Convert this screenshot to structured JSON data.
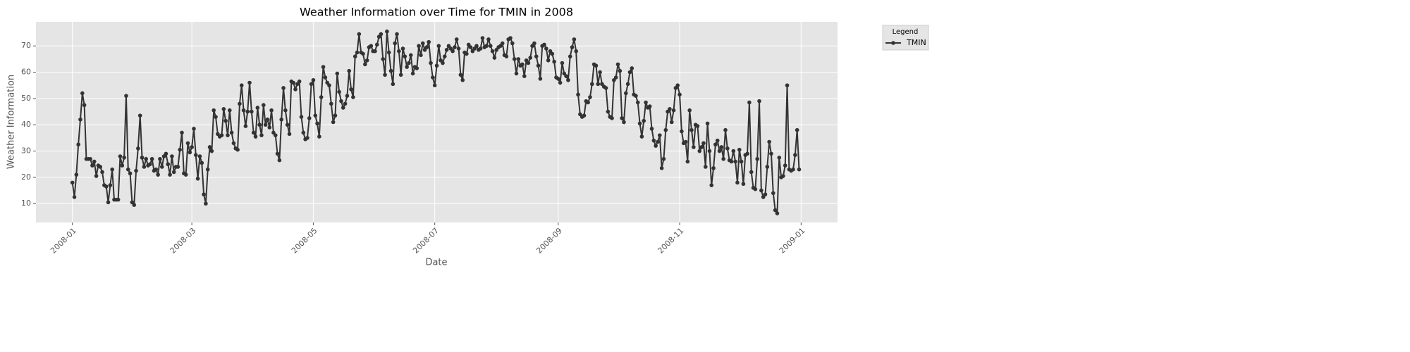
{
  "chart_data": {
    "type": "line",
    "title": "Weather Information over Time for TMIN in 2008",
    "xlabel": "Date",
    "ylabel": "Weather Information",
    "legend_title": "Legend",
    "legend_loc": "outside upper right",
    "grid": true,
    "x": [
      0,
      1,
      2,
      3,
      4,
      5,
      6,
      7,
      8,
      9,
      10,
      11,
      12,
      13,
      14,
      15,
      16,
      17,
      18,
      19,
      20,
      21,
      22,
      23,
      24,
      25,
      26,
      27,
      28,
      29,
      30,
      31,
      32,
      33,
      34,
      35,
      36,
      37,
      38,
      39,
      40,
      41,
      42,
      43,
      44,
      45,
      46,
      47,
      48,
      49,
      50,
      51,
      52,
      53,
      54,
      55,
      56,
      57,
      58,
      59,
      60,
      61,
      62,
      63,
      64,
      65,
      66,
      67,
      68,
      69,
      70,
      71,
      72,
      73,
      74,
      75,
      76,
      77,
      78,
      79,
      80,
      81,
      82,
      83,
      84,
      85,
      86,
      87,
      88,
      89,
      90,
      91,
      92,
      93,
      94,
      95,
      96,
      97,
      98,
      99,
      100,
      101,
      102,
      103,
      104,
      105,
      106,
      107,
      108,
      109,
      110,
      111,
      112,
      113,
      114,
      115,
      116,
      117,
      118,
      119,
      120,
      121,
      122,
      123,
      124,
      125,
      126,
      127,
      128,
      129,
      130,
      131,
      132,
      133,
      134,
      135,
      136,
      137,
      138,
      139,
      140,
      141,
      142,
      143,
      144,
      145,
      146,
      147,
      148,
      149,
      150,
      151,
      152,
      153,
      154,
      155,
      156,
      157,
      158,
      159,
      160,
      161,
      162,
      163,
      164,
      165,
      166,
      167,
      168,
      169,
      170,
      171,
      172,
      173,
      174,
      175,
      176,
      177,
      178,
      179,
      180,
      181,
      182,
      183,
      184,
      185,
      186,
      187,
      188,
      189,
      190,
      191,
      192,
      193,
      194,
      195,
      196,
      197,
      198,
      199,
      200,
      201,
      202,
      203,
      204,
      205,
      206,
      207,
      208,
      209,
      210,
      211,
      212,
      213,
      214,
      215,
      216,
      217,
      218,
      219,
      220,
      221,
      222,
      223,
      224,
      225,
      226,
      227,
      228,
      229,
      230,
      231,
      232,
      233,
      234,
      235,
      236,
      237,
      238,
      239,
      240,
      241,
      242,
      243,
      244,
      245,
      246,
      247,
      248,
      249,
      250,
      251,
      252,
      253,
      254,
      255,
      256,
      257,
      258,
      259,
      260,
      261,
      262,
      263,
      264,
      265,
      266,
      267,
      268,
      269,
      270,
      271,
      272,
      273,
      274,
      275,
      276,
      277,
      278,
      279,
      280,
      281,
      282,
      283,
      284,
      285,
      286,
      287,
      288,
      289,
      290,
      291,
      292,
      293,
      294,
      295,
      296,
      297,
      298,
      299,
      300,
      301,
      302,
      303,
      304,
      305,
      306,
      307,
      308,
      309,
      310,
      311,
      312,
      313,
      314,
      315,
      316,
      317,
      318,
      319,
      320,
      321,
      322,
      323,
      324,
      325,
      326,
      327,
      328,
      329,
      330,
      331,
      332,
      333,
      334,
      335,
      336,
      337,
      338,
      339,
      340,
      341,
      342,
      343,
      344,
      345,
      346,
      347,
      348,
      349,
      350,
      351,
      352,
      353,
      354,
      355,
      356,
      357,
      358,
      359,
      360,
      361,
      362,
      363,
      364,
      365
    ],
    "series": [
      {
        "name": "TMIN",
        "color": "#333333",
        "values": [
          18,
          12.5,
          21,
          32.5,
          42,
          52,
          47.5,
          27,
          27,
          27,
          24.5,
          26,
          20.5,
          24.5,
          24,
          22,
          17,
          16.5,
          10.5,
          17,
          23,
          11.5,
          11.5,
          11.5,
          28,
          24.5,
          27.5,
          51,
          23,
          21.5,
          10.5,
          9.5,
          22.5,
          31,
          43.5,
          27.5,
          24,
          27,
          24.5,
          25,
          27,
          22.5,
          23,
          21,
          27,
          24,
          28,
          29,
          25,
          21,
          28,
          22,
          24,
          24,
          30.5,
          37,
          21.5,
          21,
          33,
          29.5,
          31.5,
          38.5,
          28.5,
          19.5,
          28,
          25.5,
          13.5,
          10,
          23,
          31.5,
          30,
          45.5,
          43,
          36.5,
          35.5,
          36,
          46,
          41.5,
          36,
          45.5,
          37,
          33,
          31,
          30.5,
          48,
          55,
          45.5,
          39.5,
          45,
          56,
          45,
          37,
          35.5,
          46.5,
          40,
          36,
          47.5,
          40,
          42,
          39,
          45.5,
          37,
          36,
          29,
          26.5,
          42,
          54,
          45.5,
          40,
          36.5,
          56.5,
          56,
          53.5,
          55.5,
          56.5,
          43,
          37,
          34.5,
          35,
          42.5,
          55.5,
          57,
          43.5,
          40.5,
          35.5,
          50.5,
          62,
          58,
          56,
          55,
          48,
          41,
          43.5,
          59.5,
          52.5,
          49,
          46.5,
          48,
          51,
          60.5,
          53.5,
          50.5,
          66,
          67.5,
          74.5,
          67.5,
          67,
          63,
          64.5,
          69.5,
          70,
          68,
          68,
          70.5,
          73.5,
          74.5,
          65,
          59,
          75.5,
          67.5,
          60.5,
          55.5,
          71,
          74.5,
          68,
          59,
          69,
          66,
          62,
          63.5,
          66.5,
          59.5,
          62,
          61.5,
          70,
          66.5,
          71,
          68.5,
          69.5,
          71.5,
          63.5,
          58,
          55,
          62.5,
          70,
          64.5,
          63.5,
          66,
          68.5,
          70,
          69,
          68,
          69.5,
          72.5,
          69,
          59,
          57,
          67.5,
          67,
          70.5,
          69.5,
          68,
          69,
          70,
          68.5,
          69,
          73,
          69.5,
          70,
          72.5,
          70,
          68,
          65.5,
          68.5,
          69.5,
          70,
          71,
          66.5,
          66,
          72.5,
          73,
          71,
          65,
          59.5,
          65,
          62.5,
          63,
          58.5,
          64.5,
          63.5,
          65.5,
          70,
          71,
          66,
          62.5,
          57.5,
          70,
          70.5,
          69,
          64.5,
          68,
          67,
          64,
          58,
          57.5,
          56,
          63.5,
          59.5,
          58.5,
          57,
          66,
          69.5,
          72.5,
          68,
          51.5,
          44,
          43,
          43.5,
          49,
          48.5,
          50.5,
          55.5,
          63,
          62.5,
          55.5,
          60,
          55.5,
          54.5,
          54,
          45,
          43,
          42.5,
          57,
          58,
          63,
          60.5,
          42.5,
          41,
          52,
          55.5,
          60,
          61.5,
          51.5,
          51,
          48.5,
          40.5,
          35.5,
          41.5,
          48.5,
          46.5,
          47,
          38.5,
          34,
          32,
          33.5,
          36,
          23.5,
          27,
          38,
          45,
          46,
          41,
          45.5,
          54,
          55,
          51.5,
          37.5,
          33,
          33.5,
          26,
          45.5,
          38,
          31.5,
          40,
          39.5,
          30,
          31.5,
          33,
          24,
          40.5,
          30,
          17,
          23.5,
          32.5,
          34,
          30,
          31.5,
          27,
          38,
          31,
          26.5,
          26,
          30,
          26,
          18,
          30.5,
          26,
          17.5,
          28.5,
          29,
          48.5,
          22,
          16,
          15.5,
          27,
          49,
          15,
          12.5,
          13.5,
          24,
          33.5,
          29,
          14,
          7.5,
          6.3,
          27.5,
          20,
          20.5,
          24.5,
          55,
          23,
          22.5,
          23,
          28.5,
          38,
          23
        ]
      }
    ],
    "xlim": [
      -18.3,
      384.3
    ],
    "xticks": [
      {
        "value": 0,
        "label": "2008-01"
      },
      {
        "value": 60,
        "label": "2008-03"
      },
      {
        "value": 121,
        "label": "2008-05"
      },
      {
        "value": 182,
        "label": "2008-07"
      },
      {
        "value": 244,
        "label": "2008-09"
      },
      {
        "value": 305,
        "label": "2008-11"
      },
      {
        "value": 366,
        "label": "2009-01"
      }
    ],
    "ylim": [
      2.83,
      79.17
    ],
    "yticks": [
      10,
      20,
      30,
      40,
      50,
      60,
      70
    ]
  }
}
